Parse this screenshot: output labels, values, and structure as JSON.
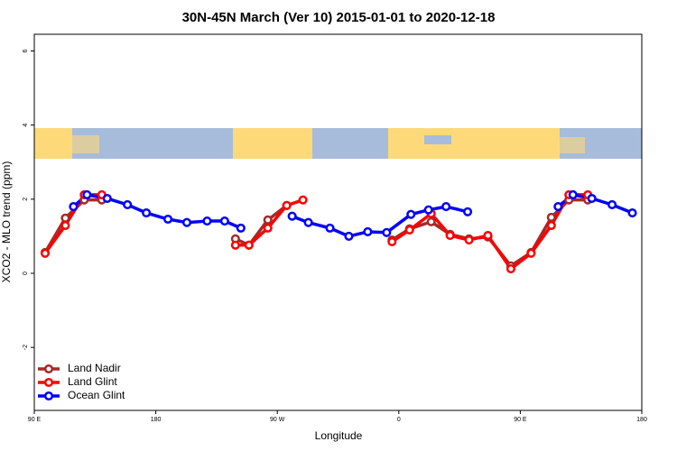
{
  "chart_data": {
    "type": "line",
    "title": "30N-45N March (Ver 10)   2015-01-01 to 2020-12-18",
    "xlabel": "Longitude",
    "ylabel": "XCO2 - MLO trend (ppm)",
    "xlim": [
      90,
      540
    ],
    "ylim": [
      -3.7,
      6.45
    ],
    "xticks": [
      {
        "value": 90,
        "label": "90 E"
      },
      180,
      {
        "value": 270,
        "label": "90 W"
      },
      {
        "value": 360,
        "label": "0"
      },
      {
        "value": 450,
        "label": "90 E"
      },
      {
        "value": 540,
        "label": "180"
      }
    ],
    "yticks": [
      -2,
      0,
      2,
      4,
      6
    ],
    "legend": "bottomleft",
    "series": [
      {
        "name": "Land Nadir",
        "color": "#a52a2a",
        "x": [
          98,
          113,
          127,
          140,
          null,
          239,
          249,
          263,
          277,
          null,
          355,
          368,
          384,
          398,
          412,
          426,
          443,
          458,
          473,
          486,
          500
        ],
        "values": [
          0.56,
          1.49,
          1.98,
          1.98,
          null,
          0.93,
          0.76,
          1.44,
          1.83,
          null,
          0.9,
          1.2,
          1.39,
          1.05,
          0.93,
          0.98,
          0.2,
          0.56,
          1.51,
          1.98,
          1.98
        ]
      },
      {
        "name": "Land Glint",
        "color": "#ff0000",
        "x": [
          98,
          113,
          127,
          140,
          null,
          239,
          249,
          263,
          277,
          289,
          null,
          355,
          368,
          384,
          398,
          412,
          426,
          443,
          458,
          473,
          486,
          500
        ],
        "values": [
          0.54,
          1.29,
          2.12,
          2.12,
          null,
          0.76,
          0.76,
          1.22,
          1.83,
          1.98,
          null,
          0.85,
          1.17,
          1.61,
          1.02,
          0.9,
          1.02,
          0.12,
          0.54,
          1.29,
          2.12,
          2.12
        ]
      },
      {
        "name": "Ocean Glint",
        "color": "#0000ff",
        "x": [
          119,
          129,
          144,
          159,
          173,
          189,
          203,
          218,
          231,
          243,
          null,
          281,
          293,
          309,
          323,
          337,
          351,
          369,
          382,
          395,
          411,
          null,
          478,
          489,
          503,
          518,
          533
        ],
        "values": [
          1.8,
          2.12,
          2.02,
          1.85,
          1.63,
          1.46,
          1.37,
          1.41,
          1.41,
          1.22,
          null,
          1.54,
          1.37,
          1.22,
          1.0,
          1.12,
          1.1,
          1.59,
          1.71,
          1.8,
          1.66,
          null,
          1.8,
          2.12,
          2.02,
          1.85,
          1.63
        ]
      }
    ]
  }
}
